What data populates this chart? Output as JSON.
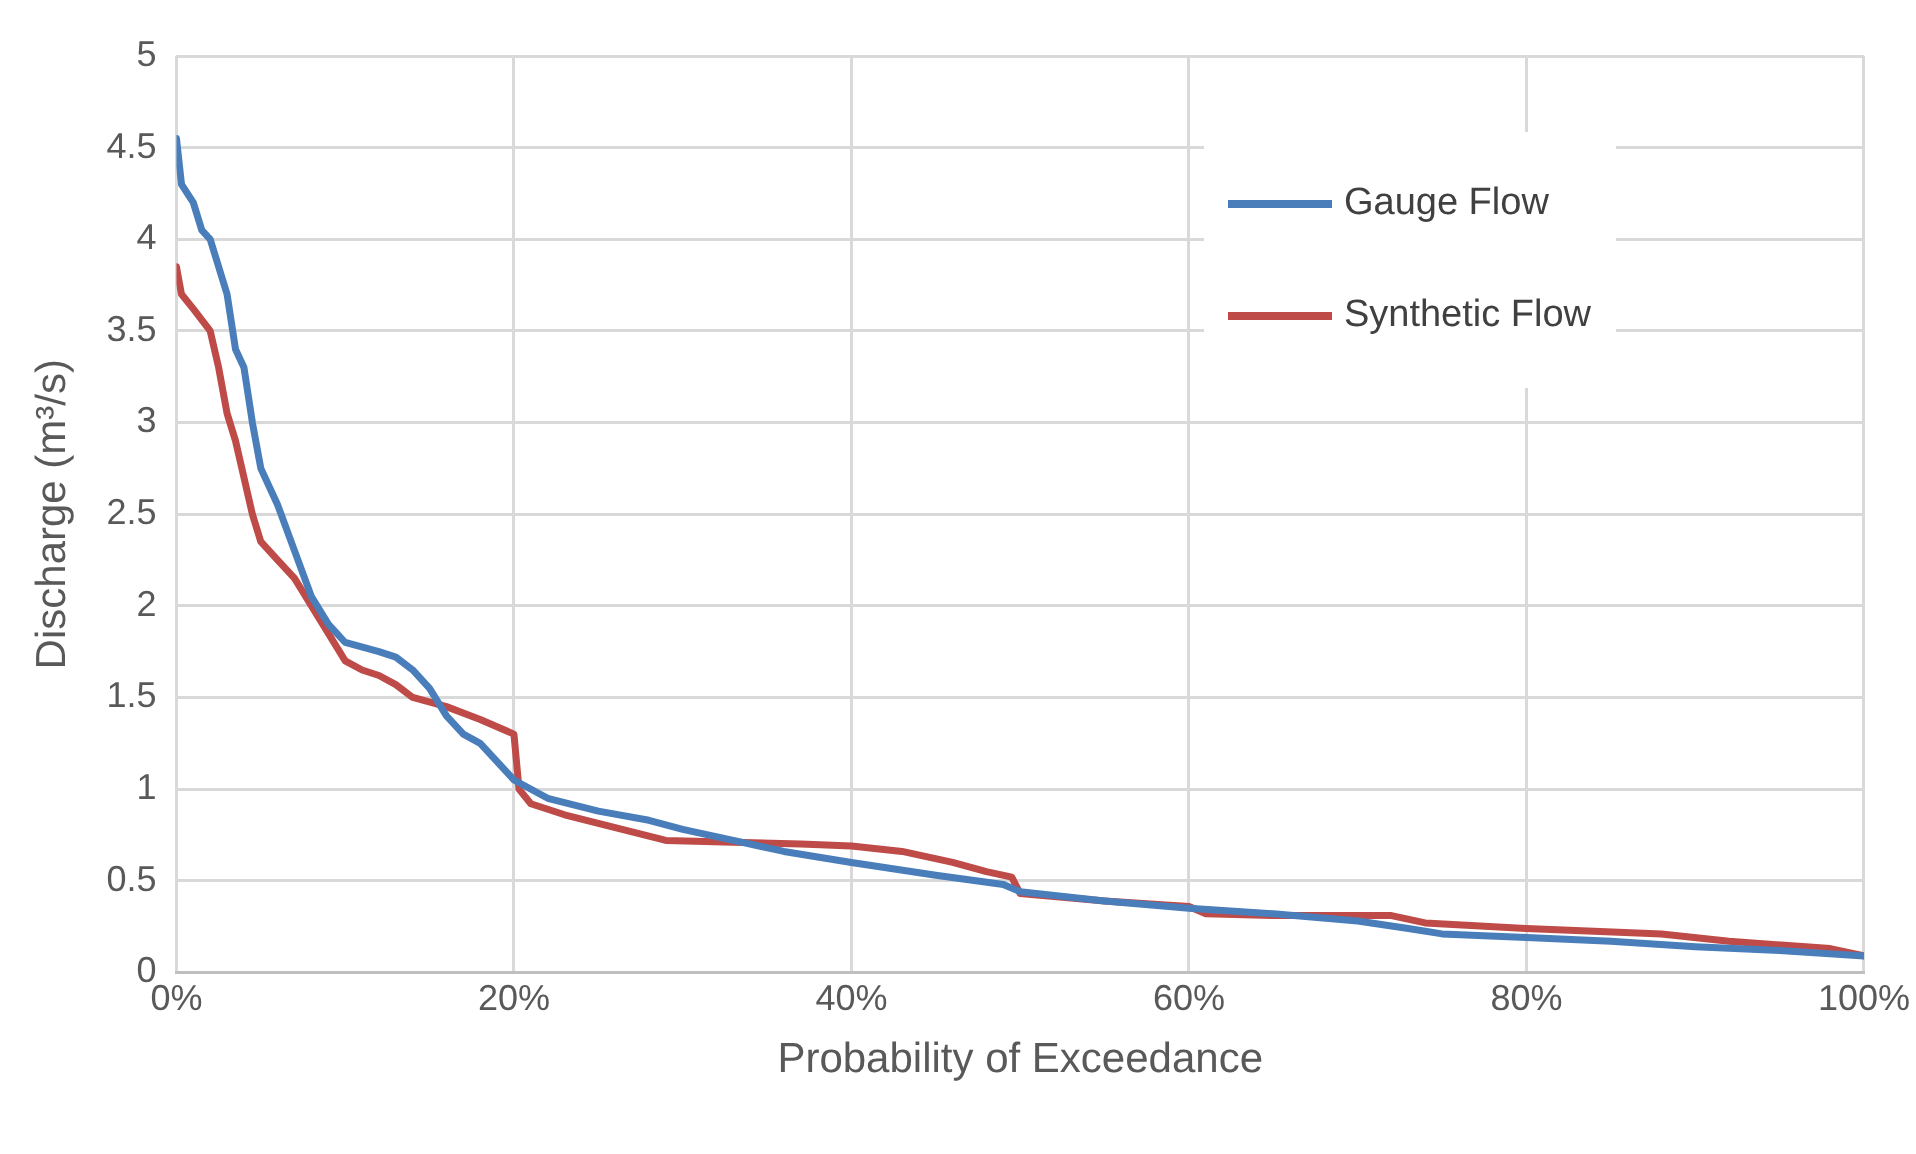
{
  "chart_data": {
    "type": "line",
    "xlabel": "Probability of Exceedance",
    "ylabel": "Discharge (m³/s)",
    "xlim": [
      0,
      100
    ],
    "xticks": [
      {
        "value": 0,
        "label": "0%"
      },
      {
        "value": 20,
        "label": "20%"
      },
      {
        "value": 40,
        "label": "40%"
      },
      {
        "value": 60,
        "label": "60%"
      },
      {
        "value": 80,
        "label": "80%"
      },
      {
        "value": 100,
        "label": "100%"
      }
    ],
    "ylim": [
      0,
      5
    ],
    "yticks": [
      0,
      0.5,
      1,
      1.5,
      2,
      2.5,
      3,
      3.5,
      4,
      4.5,
      5
    ],
    "grid": true,
    "legend": "top right",
    "marker": "none",
    "line_style": "solid",
    "series": [
      {
        "name": "Gauge Flow",
        "color": "#4a7ebb",
        "x": [
          0,
          0.3,
          1,
          1.5,
          2,
          2.5,
          3,
          3.5,
          4,
          4.5,
          5,
          6,
          7,
          8,
          9,
          10,
          12,
          13,
          14,
          15,
          16,
          17,
          18,
          19,
          20,
          22,
          25,
          28,
          30,
          33,
          36,
          40,
          45,
          49,
          50,
          55,
          60,
          65,
          70,
          73,
          75,
          80,
          85,
          90,
          95,
          100
        ],
        "values": [
          4.55,
          4.3,
          4.2,
          4.05,
          4.0,
          3.85,
          3.7,
          3.4,
          3.3,
          3.0,
          2.75,
          2.55,
          2.3,
          2.05,
          1.9,
          1.8,
          1.75,
          1.72,
          1.65,
          1.55,
          1.4,
          1.3,
          1.25,
          1.15,
          1.05,
          0.95,
          0.88,
          0.83,
          0.78,
          0.72,
          0.66,
          0.6,
          0.53,
          0.48,
          0.44,
          0.39,
          0.35,
          0.32,
          0.28,
          0.24,
          0.21,
          0.19,
          0.17,
          0.14,
          0.12,
          0.09
        ]
      },
      {
        "name": "Synthetic Flow",
        "color": "#be4b48",
        "x": [
          0,
          0.3,
          1,
          2,
          2.5,
          3,
          3.5,
          4,
          4.5,
          5,
          6,
          7,
          8,
          9,
          10,
          11,
          12,
          13,
          14,
          16,
          18,
          20,
          20.3,
          21,
          23,
          26,
          29,
          33,
          37,
          40,
          43,
          46,
          48,
          49.5,
          50,
          55,
          60,
          61,
          65,
          72,
          74,
          80,
          88,
          92,
          98,
          100
        ],
        "values": [
          3.85,
          3.7,
          3.62,
          3.5,
          3.3,
          3.05,
          2.9,
          2.7,
          2.5,
          2.35,
          2.25,
          2.15,
          2.0,
          1.85,
          1.7,
          1.65,
          1.62,
          1.57,
          1.5,
          1.45,
          1.38,
          1.3,
          1.0,
          0.92,
          0.86,
          0.79,
          0.72,
          0.71,
          0.7,
          0.69,
          0.66,
          0.6,
          0.55,
          0.52,
          0.43,
          0.39,
          0.36,
          0.32,
          0.31,
          0.31,
          0.27,
          0.24,
          0.21,
          0.17,
          0.13,
          0.09
        ]
      }
    ]
  }
}
